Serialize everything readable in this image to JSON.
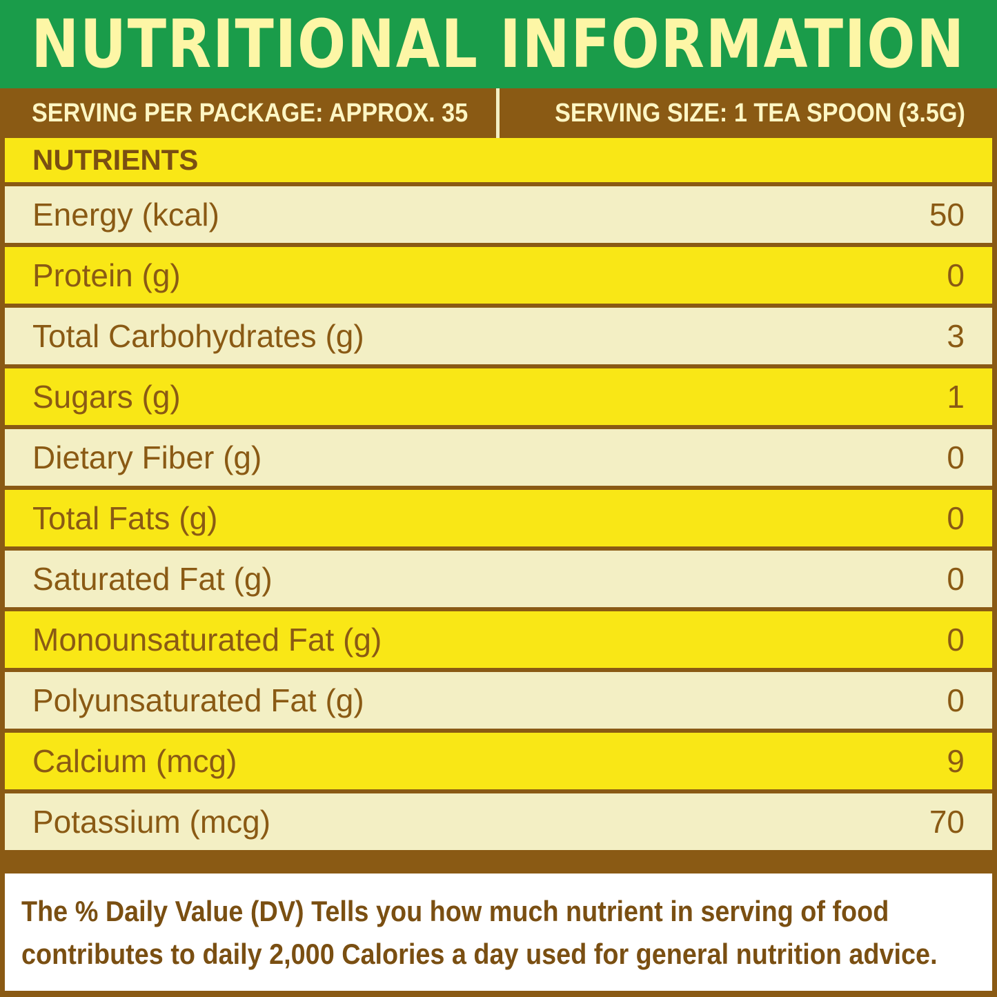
{
  "title": "NUTRITIONAL INFORMATION",
  "serving": {
    "per_package": "SERVING PER PACKAGE: APPROX. 35",
    "size": "SERVING SIZE: 1 TEA SPOON (3.5G)"
  },
  "table": {
    "header": "NUTRIENTS",
    "rows": [
      {
        "label": "Energy (kcal)",
        "value": "50"
      },
      {
        "label": "Protein (g)",
        "value": "0"
      },
      {
        "label": "Total Carbohydrates (g)",
        "value": "3"
      },
      {
        "label": "Sugars (g)",
        "value": "1"
      },
      {
        "label": "Dietary Fiber (g)",
        "value": "0"
      },
      {
        "label": "Total Fats (g)",
        "value": "0"
      },
      {
        "label": "Saturated Fat (g)",
        "value": "0"
      },
      {
        "label": "Monounsaturated Fat (g)",
        "value": "0"
      },
      {
        "label": "Polyunsaturated Fat (g)",
        "value": "0"
      },
      {
        "label": "Calcium (mcg)",
        "value": "9"
      },
      {
        "label": "Potassium  (mcg)",
        "value": "70"
      }
    ]
  },
  "footnote": {
    "line1": "The % Daily Value (DV) Tells you how much nutrient in serving of food",
    "line2": "contributes to daily 2,000 Calories a day used for general nutrition advice."
  },
  "colors": {
    "title_bg": "#1a9c4a",
    "title_text": "#fdf6a6",
    "brown": "#8a5a14",
    "yellow_row": "#f9e716",
    "light_row": "#f3efc4"
  }
}
